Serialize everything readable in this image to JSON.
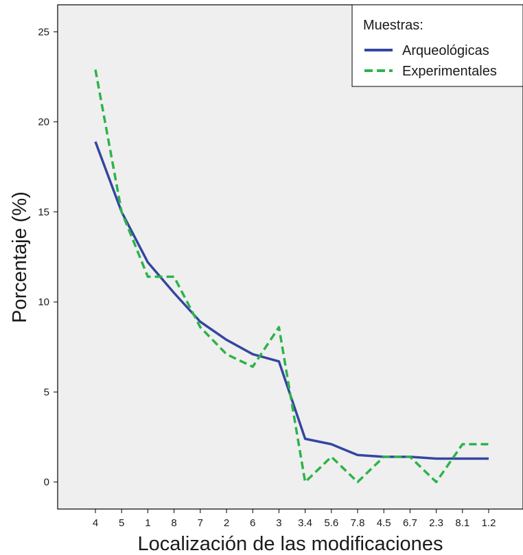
{
  "chart_data": {
    "type": "line",
    "xlabel": "Localización de las modificaciones",
    "ylabel": "Porcentaje (%)",
    "categories": [
      "4",
      "5",
      "1",
      "8",
      "7",
      "2",
      "6",
      "3",
      "3.4",
      "5.6",
      "7.8",
      "4.5",
      "6.7",
      "2.3",
      "8.1",
      "1.2"
    ],
    "ylim": [
      -1.5,
      26.5
    ],
    "yticks": [
      0,
      5,
      10,
      15,
      20,
      25
    ],
    "grid": false,
    "legend": {
      "title": "Muestras:",
      "position": "top-right"
    },
    "series": [
      {
        "name": "Arqueológicas",
        "color": "#3346a0",
        "style": "solid",
        "values": [
          18.9,
          15.0,
          12.2,
          10.5,
          8.9,
          7.9,
          7.1,
          6.7,
          2.4,
          2.1,
          1.5,
          1.4,
          1.4,
          1.3,
          1.3,
          1.3
        ]
      },
      {
        "name": "Experimentales",
        "color": "#2db34a",
        "style": "dashed",
        "values": [
          22.9,
          15.0,
          11.4,
          11.4,
          8.6,
          7.1,
          6.4,
          8.6,
          0.0,
          1.4,
          0.0,
          1.4,
          1.4,
          0.0,
          2.1,
          2.1
        ]
      }
    ]
  }
}
